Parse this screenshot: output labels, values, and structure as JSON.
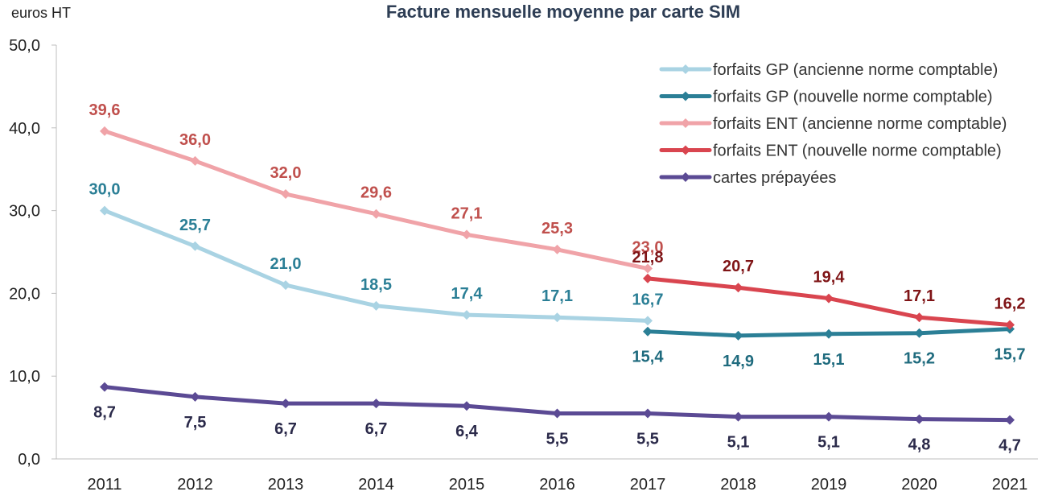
{
  "chart_data": {
    "type": "line",
    "title": "Facture mensuelle moyenne par carte SIM",
    "ylabel": "euros HT",
    "xlabel": "",
    "ylim": [
      0,
      50
    ],
    "yticks": [
      "0,0",
      "10,0",
      "20,0",
      "30,0",
      "40,0",
      "50,0"
    ],
    "x": [
      "2011",
      "2012",
      "2013",
      "2014",
      "2015",
      "2016",
      "2017",
      "2018",
      "2019",
      "2020",
      "2021"
    ],
    "grid": false,
    "legend_position": "top-right",
    "series": [
      {
        "name": "forfaits GP (ancienne norme comptable)",
        "color": "#a9d3e3",
        "label_color": "#2b7f96",
        "label_position": "above",
        "values": [
          30.0,
          25.7,
          21.0,
          18.5,
          17.4,
          17.1,
          16.7,
          null,
          null,
          null,
          null
        ],
        "labels": [
          "30,0",
          "25,7",
          "21,0",
          "18,5",
          "17,4",
          "17,1",
          "16,7",
          "",
          "",
          "",
          ""
        ]
      },
      {
        "name": "forfaits GP (nouvelle norme comptable)",
        "color": "#2b7f96",
        "label_color": "#1f6b7e",
        "label_position": "below",
        "values": [
          null,
          null,
          null,
          null,
          null,
          null,
          15.4,
          14.9,
          15.1,
          15.2,
          15.7
        ],
        "labels": [
          "",
          "",
          "",
          "",
          "",
          "",
          "15,4",
          "14,9",
          "15,1",
          "15,2",
          "15,7"
        ]
      },
      {
        "name": "forfaits ENT (ancienne norme comptable)",
        "color": "#f0a3a8",
        "label_color": "#c0504d",
        "label_position": "above",
        "values": [
          39.6,
          36.0,
          32.0,
          29.6,
          27.1,
          25.3,
          23.0,
          null,
          null,
          null,
          null
        ],
        "labels": [
          "39,6",
          "36,0",
          "32,0",
          "29,6",
          "27,1",
          "25,3",
          "23,0",
          "",
          "",
          "",
          ""
        ]
      },
      {
        "name": "forfaits ENT (nouvelle norme comptable)",
        "color": "#d9454f",
        "label_color": "#7f1416",
        "label_position": "above",
        "values": [
          null,
          null,
          null,
          null,
          null,
          null,
          21.8,
          20.7,
          19.4,
          17.1,
          16.2
        ],
        "labels": [
          "",
          "",
          "",
          "",
          "",
          "",
          "21,8",
          "20,7",
          "19,4",
          "17,1",
          "16,2"
        ]
      },
      {
        "name": "cartes prépayées",
        "color": "#5b4a94",
        "label_color": "#2b2a4a",
        "label_position": "below",
        "values": [
          8.7,
          7.5,
          6.7,
          6.7,
          6.4,
          5.5,
          5.5,
          5.1,
          5.1,
          4.8,
          4.7
        ],
        "labels": [
          "8,7",
          "7,5",
          "6,7",
          "6,7",
          "6,4",
          "5,5",
          "5,5",
          "5,1",
          "5,1",
          "4,8",
          "4,7"
        ]
      }
    ]
  }
}
